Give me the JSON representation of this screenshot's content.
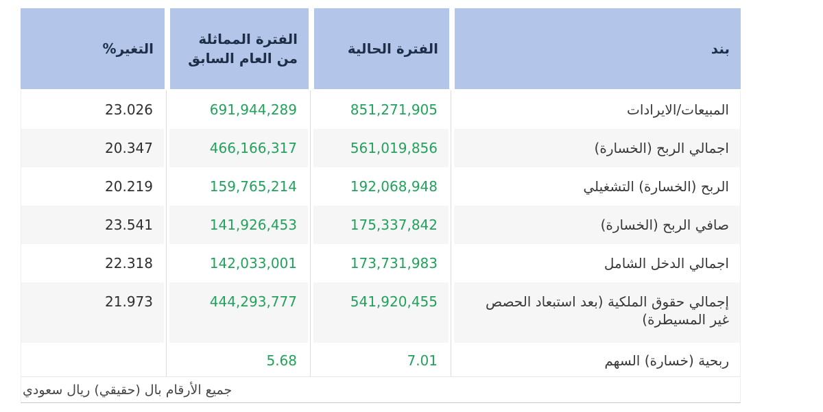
{
  "table": {
    "columns": [
      {
        "key": "item",
        "label": "بند"
      },
      {
        "key": "current",
        "label": "الفترة الحالية"
      },
      {
        "key": "previous",
        "label": "الفترة المماثلة من العام السابق"
      },
      {
        "key": "change",
        "label": "التغير%"
      }
    ],
    "rows": [
      {
        "item": "المبيعات/الايرادات",
        "current": "851,271,905",
        "previous": "691,944,289",
        "change": "23.026"
      },
      {
        "item": "اجمالي الربح (الخسارة)",
        "current": "561,019,856",
        "previous": "466,166,317",
        "change": "20.347"
      },
      {
        "item": "الربح (الخسارة) التشغيلي",
        "current": "192,068,948",
        "previous": "159,765,214",
        "change": "20.219"
      },
      {
        "item": "صافي الربح (الخسارة)",
        "current": "175,337,842",
        "previous": "141,926,453",
        "change": "23.541"
      },
      {
        "item": "اجمالي الدخل الشامل",
        "current": "173,731,983",
        "previous": "142,033,001",
        "change": "22.318"
      },
      {
        "item": "إجمالي حقوق الملكية (بعد استبعاد الحصص غير المسيطرة)",
        "current": "541,920,455",
        "previous": "444,293,777",
        "change": "21.973"
      },
      {
        "item": "ربحية (خسارة) السهم",
        "current": "7.01",
        "previous": "5.68",
        "change": ""
      }
    ],
    "footer_note": "جميع الأرقام بال (حقيقي) ريال سعودي",
    "colors": {
      "header_bg": "#b3c6e9",
      "header_text": "#1e2e47",
      "value_green": "#21a15c",
      "stripe_bg": "#f6f6f6",
      "text_dark": "#383838"
    }
  }
}
